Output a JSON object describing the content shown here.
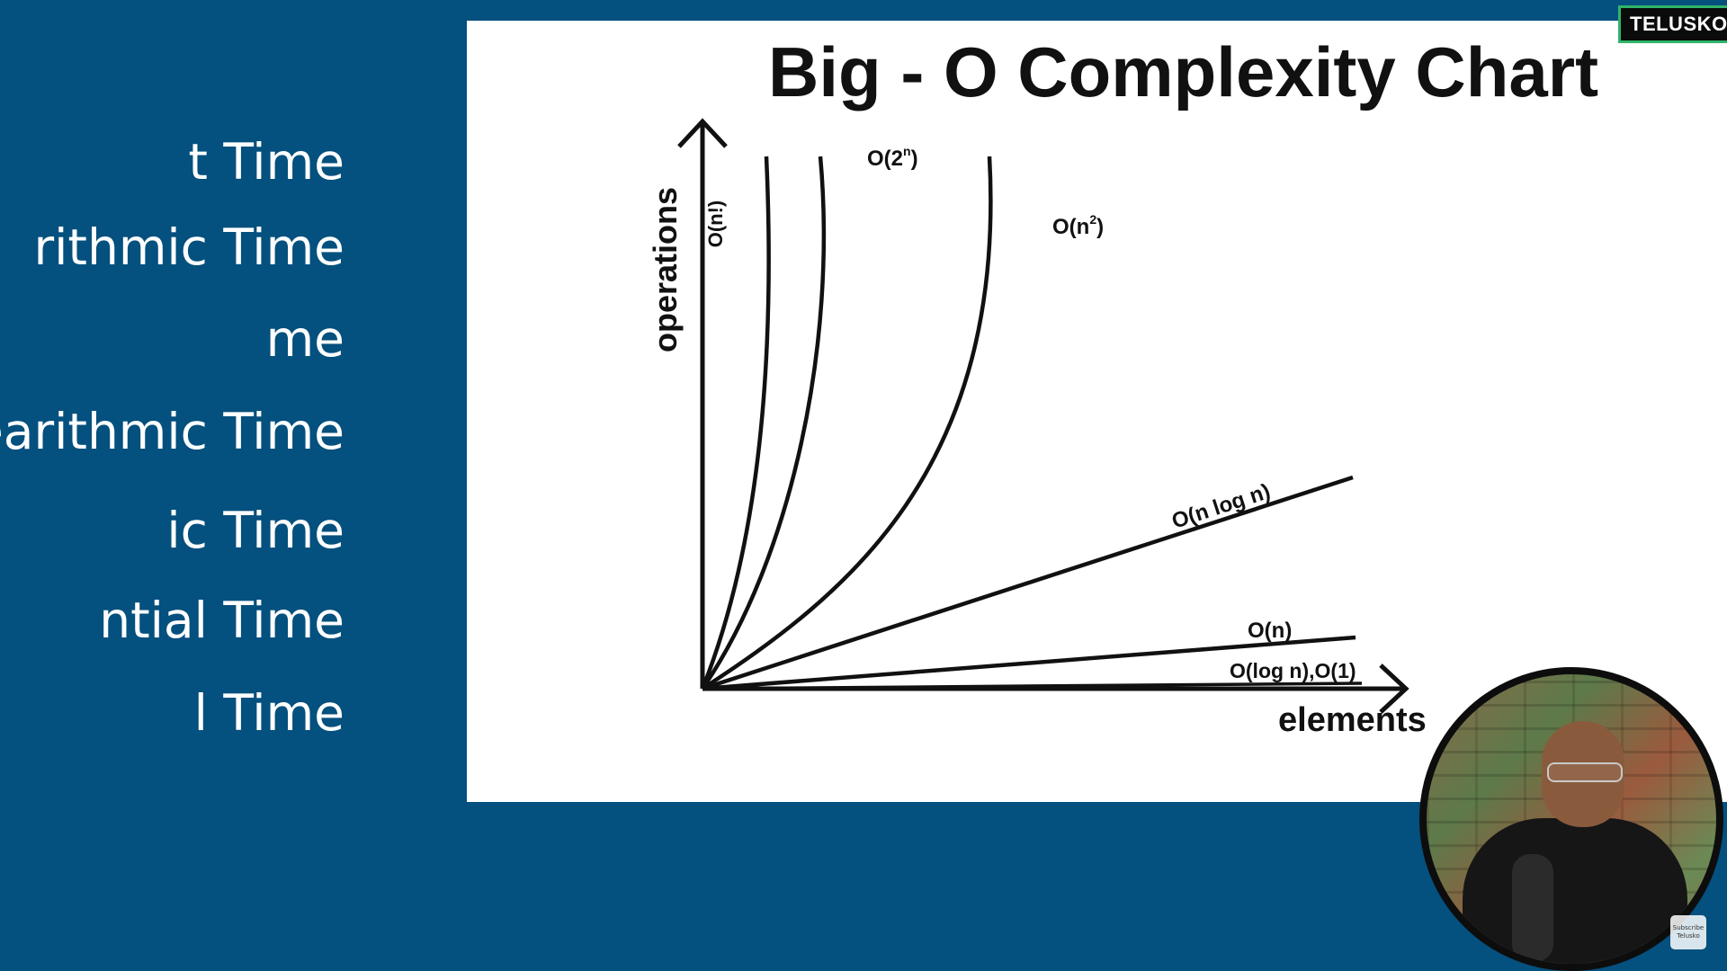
{
  "left_list": {
    "items": [
      "t Time",
      "rithmic Time",
      "me",
      "earithmic Time",
      "ic Time",
      "ntial Time",
      "l Time"
    ]
  },
  "slide": {
    "title": "Big - O Complexity Chart"
  },
  "chart_data": {
    "type": "line",
    "title": "Big - O Complexity Chart",
    "xlabel": "elements",
    "ylabel": "operations",
    "grid": false,
    "legend": "none",
    "series": [
      {
        "name": "O(n!)"
      },
      {
        "name": "O(2^n)"
      },
      {
        "name": "O(n^2)"
      },
      {
        "name": "O(n log n)"
      },
      {
        "name": "O(n)"
      },
      {
        "name": "O(log n),O(1)"
      }
    ],
    "labels": {
      "factorial": {
        "base": "O(n!)"
      },
      "exponential": {
        "pre": "O(2",
        "sup": "n",
        "post": ")"
      },
      "quadratic": {
        "pre": "O(n",
        "sup": "2",
        "post": ")"
      },
      "nlogn": "O(n log n)",
      "linear": "O(n)",
      "log_const": "O(log n),O(1)"
    }
  },
  "brand": {
    "name": "TELUSKO"
  },
  "webcam": {
    "subscribe_line1": "Subscribe",
    "subscribe_line2": "Telusko"
  },
  "colors": {
    "background": "#04507e",
    "slide": "#ffffff",
    "ink": "#111111",
    "badge_border": "#2fb56a"
  }
}
